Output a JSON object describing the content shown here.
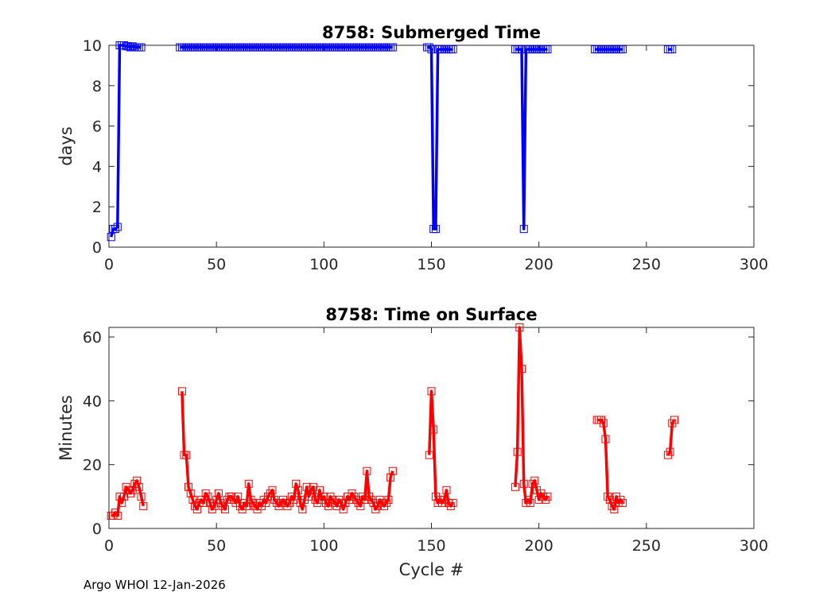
{
  "footer": "Argo WHOI 12-Jan-2026",
  "chart_data": [
    {
      "type": "line",
      "title": "8758: Submerged Time",
      "xlabel": "",
      "ylabel": "days",
      "xlim": [
        0,
        300
      ],
      "ylim": [
        0,
        10
      ],
      "xticks": [
        0,
        50,
        100,
        150,
        200,
        250,
        300
      ],
      "yticks": [
        0,
        2,
        4,
        6,
        8,
        10
      ],
      "grid": true,
      "color": "#0000ff",
      "marker": "square",
      "series": [
        {
          "name": "submerged",
          "x": [
            1,
            2,
            3,
            4,
            5,
            6,
            7,
            8,
            9,
            10,
            11,
            12,
            13,
            14,
            15
          ],
          "y": [
            0.5,
            0.9,
            0.9,
            1.0,
            10.0,
            10.0,
            10.0,
            9.95,
            9.95,
            9.9,
            9.95,
            9.9,
            9.9,
            9.9,
            9.9
          ]
        },
        {
          "name": "submerged",
          "x": [
            33,
            34,
            35,
            36,
            37,
            38,
            39,
            40,
            41,
            42,
            43,
            44,
            45,
            46,
            47,
            48,
            49,
            50,
            51,
            52,
            53,
            54,
            55,
            56,
            57,
            58,
            59,
            60,
            61,
            62,
            63,
            64,
            65,
            66,
            67,
            68,
            69,
            70,
            71,
            72,
            73,
            74,
            75,
            76,
            77,
            78,
            79,
            80,
            81,
            82,
            83,
            84,
            85,
            86,
            87,
            88,
            89,
            90,
            91,
            92,
            93,
            94,
            95,
            96,
            97,
            98,
            99,
            100,
            101,
            102,
            103,
            104,
            105,
            106,
            107,
            108,
            109,
            110,
            111,
            112,
            113,
            114,
            115,
            116,
            117,
            118,
            119,
            120,
            121,
            122,
            123,
            124,
            125,
            126,
            127,
            128,
            129,
            130,
            131,
            132
          ],
          "y": [
            9.9,
            9.9,
            9.9,
            9.9,
            9.9,
            9.9,
            9.9,
            9.9,
            9.9,
            9.9,
            9.9,
            9.9,
            9.9,
            9.9,
            9.9,
            9.9,
            9.9,
            9.9,
            9.9,
            9.9,
            9.9,
            9.9,
            9.9,
            9.9,
            9.9,
            9.9,
            9.9,
            9.9,
            9.9,
            9.9,
            9.9,
            9.9,
            9.9,
            9.9,
            9.9,
            9.9,
            9.9,
            9.9,
            9.9,
            9.9,
            9.9,
            9.9,
            9.9,
            9.9,
            9.9,
            9.9,
            9.9,
            9.9,
            9.9,
            9.9,
            9.9,
            9.9,
            9.9,
            9.9,
            9.9,
            9.9,
            9.9,
            9.9,
            9.9,
            9.9,
            9.9,
            9.9,
            9.9,
            9.9,
            9.9,
            9.9,
            9.9,
            9.9,
            9.9,
            9.9,
            9.9,
            9.9,
            9.9,
            9.9,
            9.9,
            9.9,
            9.9,
            9.9,
            9.9,
            9.9,
            9.9,
            9.9,
            9.9,
            9.9,
            9.9,
            9.9,
            9.9,
            9.9,
            9.9,
            9.9,
            9.9,
            9.9,
            9.9,
            9.9,
            9.9,
            9.9,
            9.9,
            9.9,
            9.9,
            9.9
          ]
        },
        {
          "name": "submerged",
          "x": [
            148,
            149,
            150,
            151,
            152,
            153,
            154,
            155,
            156,
            157,
            158,
            159,
            160
          ],
          "y": [
            9.9,
            9.9,
            9.8,
            0.9,
            0.9,
            9.8,
            9.8,
            9.8,
            9.8,
            9.8,
            9.8,
            9.8,
            9.8
          ]
        },
        {
          "name": "submerged",
          "x": [
            189,
            190,
            191,
            192,
            193,
            194,
            195,
            196,
            197,
            198,
            199,
            200,
            201,
            202,
            203,
            204
          ],
          "y": [
            9.8,
            9.8,
            9.8,
            9.8,
            0.9,
            9.8,
            9.8,
            9.8,
            9.8,
            9.8,
            9.8,
            9.8,
            9.8,
            9.8,
            9.8,
            9.8
          ]
        },
        {
          "name": "submerged",
          "x": [
            226,
            227,
            228,
            229,
            230,
            231,
            232,
            233,
            234,
            235,
            236,
            237,
            238,
            239
          ],
          "y": [
            9.8,
            9.8,
            9.8,
            9.8,
            9.8,
            9.8,
            9.8,
            9.8,
            9.8,
            9.8,
            9.8,
            9.8,
            9.8,
            9.8
          ]
        },
        {
          "name": "submerged",
          "x": [
            260,
            261,
            262
          ],
          "y": [
            9.8,
            9.8,
            9.8
          ]
        }
      ]
    },
    {
      "type": "line",
      "title": "8758: Time on Surface",
      "xlabel": "Cycle #",
      "ylabel": "Minutes",
      "xlim": [
        0,
        300
      ],
      "ylim": [
        0,
        63
      ],
      "xticks": [
        0,
        50,
        100,
        150,
        200,
        250,
        300
      ],
      "yticks": [
        0,
        20,
        40,
        60
      ],
      "grid": true,
      "color": "#ff0000",
      "marker": "square",
      "series": [
        {
          "name": "surface",
          "x": [
            1,
            2,
            3,
            4,
            5,
            6,
            7,
            8,
            9,
            10,
            11,
            12,
            13,
            14,
            15,
            16
          ],
          "y": [
            4,
            4,
            5,
            4,
            10,
            8,
            10,
            13,
            12,
            11,
            12,
            14,
            15,
            13,
            10,
            7
          ]
        },
        {
          "name": "surface",
          "x": [
            34,
            35,
            36,
            37,
            38,
            39,
            40,
            41,
            42,
            43,
            44,
            45,
            46,
            47,
            48,
            49,
            50,
            51,
            52,
            53,
            54,
            55,
            56,
            57,
            58,
            59,
            60,
            61,
            62,
            63,
            64,
            65,
            66,
            67,
            68,
            69,
            70,
            71,
            72,
            73,
            74,
            75,
            76,
            77,
            78,
            79,
            80,
            81,
            82,
            83,
            84,
            85,
            86,
            87,
            88,
            89,
            90,
            91,
            92,
            93,
            94,
            95,
            96,
            97,
            98,
            99,
            100,
            101,
            102,
            103,
            104,
            105,
            106,
            107,
            108,
            109,
            110,
            111,
            112,
            113,
            114,
            115,
            116,
            117,
            118,
            119,
            120,
            121,
            122,
            123,
            124,
            125,
            126,
            127,
            128,
            129,
            130,
            131,
            132
          ],
          "y": [
            43,
            23,
            23,
            13,
            11,
            9,
            7,
            6,
            8,
            9,
            8,
            11,
            10,
            8,
            6,
            7,
            9,
            11,
            8,
            7,
            6,
            9,
            10,
            10,
            9,
            8,
            10,
            7,
            6,
            8,
            7,
            14,
            9,
            8,
            7,
            6,
            8,
            7,
            9,
            8,
            10,
            11,
            12,
            9,
            8,
            7,
            8,
            9,
            8,
            7,
            8,
            10,
            9,
            14,
            12,
            8,
            6,
            9,
            13,
            10,
            12,
            13,
            9,
            8,
            12,
            9,
            10,
            8,
            7,
            10,
            9,
            8,
            7,
            9,
            8,
            6,
            8,
            10,
            9,
            11,
            10,
            9,
            8,
            7,
            10,
            9,
            18,
            10,
            9,
            8,
            6,
            7,
            9,
            8,
            7,
            8,
            9,
            16,
            18
          ]
        },
        {
          "name": "surface",
          "x": [
            149,
            150,
            151,
            152,
            153,
            154,
            155,
            156,
            157,
            158,
            159,
            160
          ],
          "y": [
            23,
            43,
            31,
            10,
            8,
            9,
            8,
            9,
            12,
            8,
            7,
            8
          ]
        },
        {
          "name": "surface",
          "x": [
            189,
            190,
            191,
            192,
            193,
            194,
            195,
            196,
            197,
            198,
            199,
            200,
            201,
            202,
            203,
            204
          ],
          "y": [
            13,
            24,
            63,
            50,
            14,
            8,
            9,
            8,
            14,
            15,
            12,
            9,
            11,
            10,
            9,
            10
          ]
        },
        {
          "name": "surface",
          "x": [
            227,
            228,
            229,
            230,
            231,
            232,
            233,
            234,
            235,
            236,
            237,
            238,
            239
          ],
          "y": [
            34,
            34,
            34,
            33,
            28,
            10,
            9,
            7,
            6,
            10,
            8,
            9,
            8
          ]
        },
        {
          "name": "surface",
          "x": [
            260,
            261,
            262,
            263
          ],
          "y": [
            23,
            24,
            33,
            34
          ]
        }
      ]
    }
  ]
}
